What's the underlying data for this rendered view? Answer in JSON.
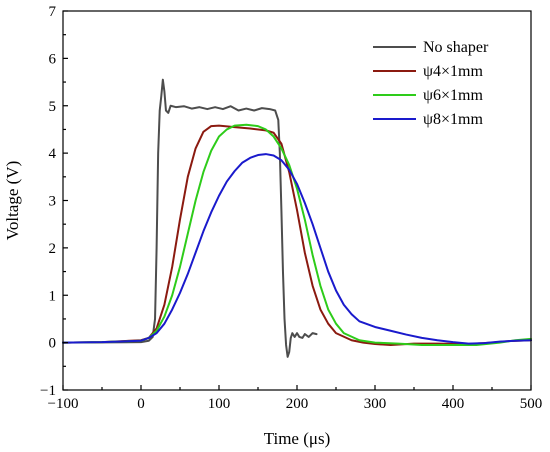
{
  "chart_data": {
    "type": "line",
    "title": "",
    "xlabel": "Time (μs)",
    "ylabel": "Voltage (V)",
    "xlim": [
      -100,
      500
    ],
    "ylim": [
      -1,
      7
    ],
    "xticks": [
      -100,
      0,
      100,
      200,
      300,
      400,
      500
    ],
    "yticks": [
      -1,
      0,
      1,
      2,
      3,
      4,
      5,
      6,
      7
    ],
    "grid": false,
    "legend_position": "top-right",
    "series": [
      {
        "name": "No shaper",
        "color": "#4d4d4d",
        "points": [
          [
            -100,
            0
          ],
          [
            0,
            0.01
          ],
          [
            10,
            0.04
          ],
          [
            15,
            0.12
          ],
          [
            18,
            0.5
          ],
          [
            20,
            2.0
          ],
          [
            22,
            4.0
          ],
          [
            24,
            4.9
          ],
          [
            26,
            5.2
          ],
          [
            28,
            5.55
          ],
          [
            30,
            5.3
          ],
          [
            32,
            4.9
          ],
          [
            35,
            4.85
          ],
          [
            38,
            5.0
          ],
          [
            45,
            4.97
          ],
          [
            55,
            4.99
          ],
          [
            65,
            4.94
          ],
          [
            75,
            4.97
          ],
          [
            85,
            4.93
          ],
          [
            95,
            4.97
          ],
          [
            105,
            4.93
          ],
          [
            115,
            4.99
          ],
          [
            125,
            4.9
          ],
          [
            135,
            4.94
          ],
          [
            145,
            4.9
          ],
          [
            155,
            4.95
          ],
          [
            165,
            4.93
          ],
          [
            172,
            4.9
          ],
          [
            176,
            4.7
          ],
          [
            178,
            4.0
          ],
          [
            180,
            2.8
          ],
          [
            182,
            1.5
          ],
          [
            184,
            0.5
          ],
          [
            186,
            -0.05
          ],
          [
            188,
            -0.3
          ],
          [
            190,
            -0.2
          ],
          [
            192,
            0.1
          ],
          [
            194,
            0.2
          ],
          [
            197,
            0.12
          ],
          [
            200,
            0.2
          ],
          [
            203,
            0.12
          ],
          [
            207,
            0.1
          ],
          [
            210,
            0.18
          ],
          [
            215,
            0.12
          ],
          [
            220,
            0.2
          ],
          [
            225,
            0.18
          ]
        ]
      },
      {
        "name": "ψ4×1mm",
        "color": "#8b1a10",
        "points": [
          [
            -100,
            0
          ],
          [
            -50,
            0.01
          ],
          [
            0,
            0.05
          ],
          [
            10,
            0.1
          ],
          [
            20,
            0.3
          ],
          [
            30,
            0.8
          ],
          [
            40,
            1.6
          ],
          [
            50,
            2.6
          ],
          [
            60,
            3.5
          ],
          [
            70,
            4.1
          ],
          [
            80,
            4.45
          ],
          [
            90,
            4.57
          ],
          [
            100,
            4.58
          ],
          [
            120,
            4.55
          ],
          [
            140,
            4.52
          ],
          [
            160,
            4.48
          ],
          [
            170,
            4.43
          ],
          [
            180,
            4.2
          ],
          [
            190,
            3.6
          ],
          [
            200,
            2.8
          ],
          [
            210,
            1.9
          ],
          [
            220,
            1.2
          ],
          [
            230,
            0.7
          ],
          [
            240,
            0.4
          ],
          [
            250,
            0.2
          ],
          [
            270,
            0.05
          ],
          [
            285,
            0.0
          ],
          [
            300,
            -0.03
          ],
          [
            320,
            -0.05
          ],
          [
            350,
            -0.02
          ],
          [
            380,
            -0.02
          ],
          [
            420,
            -0.03
          ],
          [
            450,
            0.0
          ],
          [
            470,
            0.03
          ],
          [
            500,
            0.05
          ]
        ]
      },
      {
        "name": "ψ6×1mm",
        "color": "#2ecc1a",
        "points": [
          [
            -100,
            0
          ],
          [
            -50,
            0.01
          ],
          [
            0,
            0.04
          ],
          [
            10,
            0.1
          ],
          [
            20,
            0.25
          ],
          [
            30,
            0.55
          ],
          [
            40,
            1.0
          ],
          [
            50,
            1.6
          ],
          [
            60,
            2.3
          ],
          [
            70,
            3.0
          ],
          [
            80,
            3.6
          ],
          [
            90,
            4.05
          ],
          [
            100,
            4.35
          ],
          [
            110,
            4.5
          ],
          [
            120,
            4.58
          ],
          [
            135,
            4.6
          ],
          [
            150,
            4.57
          ],
          [
            160,
            4.5
          ],
          [
            170,
            4.35
          ],
          [
            180,
            4.1
          ],
          [
            190,
            3.75
          ],
          [
            200,
            3.25
          ],
          [
            210,
            2.6
          ],
          [
            220,
            1.85
          ],
          [
            230,
            1.2
          ],
          [
            240,
            0.7
          ],
          [
            250,
            0.4
          ],
          [
            260,
            0.2
          ],
          [
            280,
            0.05
          ],
          [
            300,
            0.0
          ],
          [
            330,
            -0.02
          ],
          [
            360,
            -0.05
          ],
          [
            400,
            -0.05
          ],
          [
            430,
            -0.05
          ],
          [
            460,
            0.0
          ],
          [
            480,
            0.05
          ],
          [
            500,
            0.08
          ]
        ]
      },
      {
        "name": "ψ8×1mm",
        "color": "#1a1acc",
        "points": [
          [
            -100,
            0
          ],
          [
            -50,
            0.01
          ],
          [
            0,
            0.04
          ],
          [
            10,
            0.1
          ],
          [
            20,
            0.2
          ],
          [
            30,
            0.4
          ],
          [
            40,
            0.7
          ],
          [
            50,
            1.05
          ],
          [
            60,
            1.45
          ],
          [
            70,
            1.9
          ],
          [
            80,
            2.35
          ],
          [
            90,
            2.75
          ],
          [
            100,
            3.1
          ],
          [
            110,
            3.4
          ],
          [
            120,
            3.62
          ],
          [
            130,
            3.8
          ],
          [
            140,
            3.9
          ],
          [
            150,
            3.96
          ],
          [
            160,
            3.98
          ],
          [
            170,
            3.95
          ],
          [
            180,
            3.85
          ],
          [
            190,
            3.65
          ],
          [
            200,
            3.35
          ],
          [
            210,
            2.95
          ],
          [
            220,
            2.5
          ],
          [
            230,
            2.0
          ],
          [
            240,
            1.5
          ],
          [
            250,
            1.1
          ],
          [
            260,
            0.8
          ],
          [
            270,
            0.6
          ],
          [
            280,
            0.45
          ],
          [
            300,
            0.33
          ],
          [
            320,
            0.25
          ],
          [
            340,
            0.17
          ],
          [
            360,
            0.1
          ],
          [
            380,
            0.05
          ],
          [
            400,
            0.01
          ],
          [
            420,
            -0.02
          ],
          [
            440,
            -0.01
          ],
          [
            460,
            0.02
          ],
          [
            480,
            0.04
          ],
          [
            500,
            0.05
          ]
        ]
      }
    ]
  }
}
